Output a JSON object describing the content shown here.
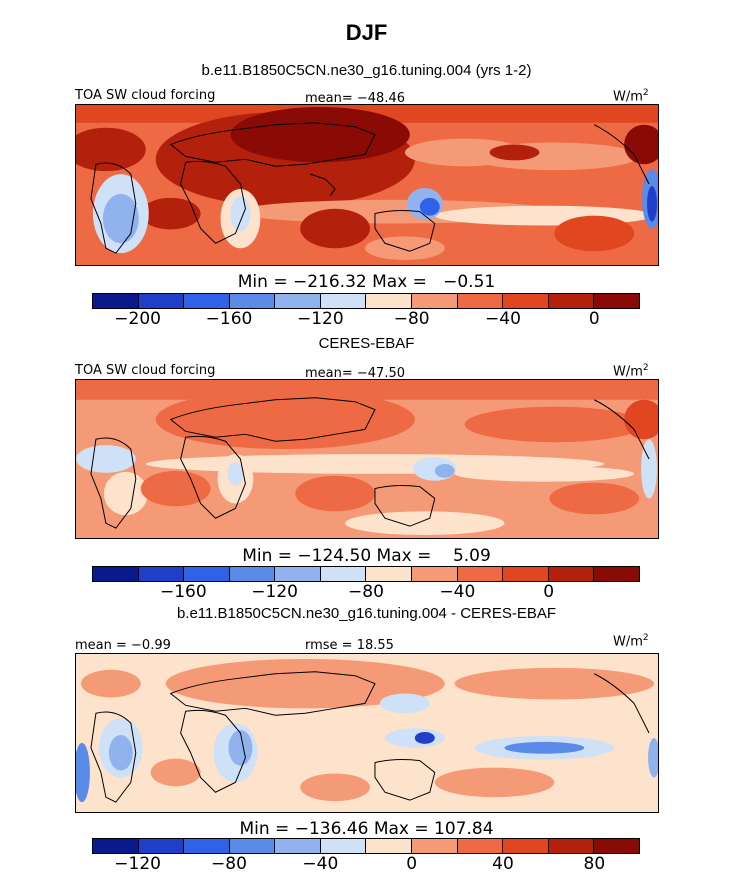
{
  "season": "DJF",
  "panels": [
    {
      "title": "b.e11.B1850C5CN.ne30_g16.tuning.004 (yrs 1-2)",
      "left_label": "TOA SW cloud forcing",
      "center_label": "mean=  -48.46",
      "units": "W/m",
      "units_sup": "2",
      "minmax": "Min = -216.32 Max =   -0.51",
      "colorbar": {
        "colors": [
          "#0a1a8c",
          "#1f3fc8",
          "#2f62e8",
          "#5b8be8",
          "#90b3ee",
          "#cfe1f6",
          "#fde3cc",
          "#f59a77",
          "#ee6a44",
          "#e0461f",
          "#b3200c",
          "#8a0b05"
        ],
        "tick_labels": [
          "-200",
          "-160",
          "-120",
          "-80",
          "-40",
          "0"
        ],
        "tick_values": [
          -200,
          -160,
          -120,
          -80,
          -40,
          0
        ],
        "range": [
          -220,
          20
        ]
      }
    },
    {
      "title": "CERES-EBAF",
      "left_label": "TOA SW cloud forcing",
      "center_label": "mean=  -47.50",
      "units": "W/m",
      "units_sup": "2",
      "minmax": "Min = -124.50 Max =    5.09",
      "colorbar": {
        "colors": [
          "#0a1a8c",
          "#1f3fc8",
          "#2f62e8",
          "#5b8be8",
          "#90b3ee",
          "#cfe1f6",
          "#fde3cc",
          "#f59a77",
          "#ee6a44",
          "#e0461f",
          "#b3200c",
          "#8a0b05"
        ],
        "tick_labels": [
          "-160",
          "-120",
          "-80",
          "-40",
          "0"
        ],
        "tick_values": [
          -160,
          -120,
          -80,
          -40,
          0
        ],
        "range": [
          -200,
          40
        ]
      }
    },
    {
      "title": "b.e11.B1850C5CN.ne30_g16.tuning.004 - CERES-EBAF",
      "left_label": "mean =   -0.99",
      "center_label": "rmse =  18.55",
      "units": "W/m",
      "units_sup": "2",
      "minmax": "Min = -136.46 Max = 107.84",
      "colorbar": {
        "colors": [
          "#0a1a8c",
          "#1f3fc8",
          "#2f62e8",
          "#5b8be8",
          "#90b3ee",
          "#cfe1f6",
          "#fde3cc",
          "#f59a77",
          "#ee6a44",
          "#e0461f",
          "#b3200c",
          "#8a0b05"
        ],
        "tick_labels": [
          "-120",
          "-80",
          "-40",
          "0",
          "40",
          "80"
        ],
        "tick_values": [
          -120,
          -80,
          -40,
          0,
          40,
          80
        ],
        "range": [
          -140,
          100
        ]
      }
    }
  ]
}
